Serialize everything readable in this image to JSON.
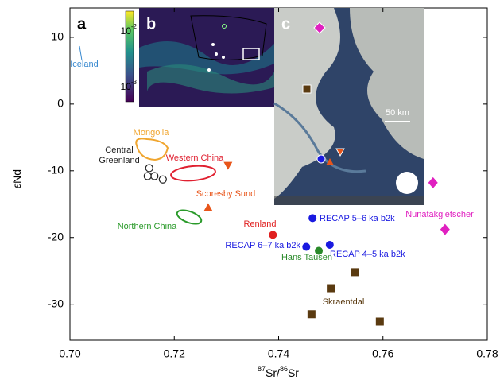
{
  "chart_data": {
    "type": "scatter",
    "x_label": [
      "87",
      "Sr/",
      "86",
      "Sr"
    ],
    "y_label": [
      "ε",
      "Nd"
    ],
    "xlim": [
      0.7,
      0.78
    ],
    "ylim": [
      -35.4,
      14.4
    ],
    "xticks": [
      {
        "value": 0.7,
        "label": "0.70"
      },
      {
        "value": 0.72,
        "label": "0.72"
      },
      {
        "value": 0.74,
        "label": "0.74"
      },
      {
        "value": 0.76,
        "label": "0.76"
      },
      {
        "value": 0.78,
        "label": "0.78"
      }
    ],
    "yticks": [
      10,
      0,
      -10,
      -20,
      -30
    ],
    "series": [
      {
        "name": "Central Greenland",
        "color": "#222222",
        "marker": "open-circle",
        "x": [
          0.7152,
          0.7149,
          0.7162,
          0.7178
        ],
        "values": [
          -9.6,
          -10.8,
          -10.8,
          -11.3
        ]
      },
      {
        "name": "Scoresby Sund",
        "color": "#e8551a",
        "marker": "triangle",
        "markers": [
          "triangle-down",
          "triangle-up"
        ],
        "x": [
          0.7303,
          0.7265
        ],
        "values": [
          -9.2,
          -15.5
        ]
      },
      {
        "name": "Renland",
        "color": "#e02020",
        "marker": "circle",
        "x": [
          0.7389
        ],
        "values": [
          -19.6
        ]
      },
      {
        "name": "RECAP 5–6 ka b2k",
        "color": "#1a1ae0",
        "marker": "circle",
        "x": [
          0.7465
        ],
        "values": [
          -17.1
        ]
      },
      {
        "name": "RECAP 6–7 ka b2k",
        "color": "#1a1ae0",
        "marker": "circle",
        "x": [
          0.7453
        ],
        "values": [
          -21.4
        ]
      },
      {
        "name": "Hans Tausen",
        "color": "#2a8a2a",
        "marker": "circle",
        "x": [
          0.7477
        ],
        "values": [
          -22.0
        ]
      },
      {
        "name": "RECAP 4–5 ka b2k",
        "color": "#1a1ae0",
        "marker": "circle",
        "x": [
          0.7498
        ],
        "values": [
          -21.1
        ]
      },
      {
        "name": "Skraentdal",
        "color": "#5a3a10",
        "marker": "square",
        "x": [
          0.7546,
          0.75,
          0.7463,
          0.7594
        ],
        "values": [
          -25.2,
          -27.6,
          -31.5,
          -32.6
        ]
      },
      {
        "name": "Nunatakgletscher",
        "color": "#e020c0",
        "marker": "diamond",
        "x": [
          0.7696,
          0.7719
        ],
        "values": [
          -11.8,
          -18.8
        ]
      }
    ],
    "regions": [
      {
        "name": "Mongolia",
        "color": "#f0a630"
      },
      {
        "name": "Western China",
        "color": "#e02030"
      },
      {
        "name": "Northern China",
        "color": "#2a9a2a"
      },
      {
        "name": "Iceland",
        "color": "#3a8ad0"
      }
    ],
    "panels": [
      "a",
      "b",
      "c"
    ],
    "colorbar": [
      {
        "base": "10",
        "exponent": "-2"
      },
      {
        "base": "10",
        "exponent": "-3"
      }
    ],
    "scale_bar": "50 km"
  }
}
